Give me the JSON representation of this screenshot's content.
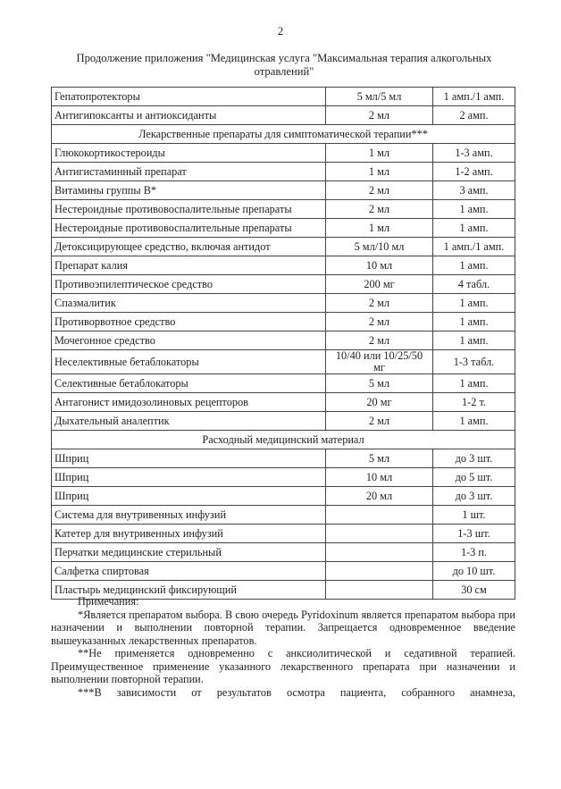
{
  "page_number": "2",
  "title": "Продолжение приложения \"Медицинская услуга \"Максимальная терапия алкогольных отравлений\"",
  "rows": [
    {
      "type": "item",
      "name": "Гепатопротекторы",
      "dose": "5 мл/5 мл",
      "qty": "1 амп./1 амп."
    },
    {
      "type": "item",
      "name": "Антигипоксанты и антиоксиданты",
      "dose": "2 мл",
      "qty": "2 амп."
    },
    {
      "type": "section",
      "name": "Лекарственные препараты для симптоматической терапии***"
    },
    {
      "type": "item",
      "name": "Глюкокортикостероиды",
      "dose": "1 мл",
      "qty": "1-3 амп."
    },
    {
      "type": "item",
      "name": "Антигистаминный препарат",
      "dose": "1 мл",
      "qty": "1-2 амп."
    },
    {
      "type": "item",
      "name": "Витамины группы В*",
      "dose": "2 мл",
      "qty": "3 амп."
    },
    {
      "type": "item",
      "name": "Нестероидные противовоспалительные препараты",
      "dose": "2 мл",
      "qty": "1 амп."
    },
    {
      "type": "item",
      "name": "Нестероидные противовоспалительные препараты",
      "dose": "1 мл",
      "qty": "1 амп."
    },
    {
      "type": "item",
      "name": "Детоксицирующее средство, включая антидот",
      "dose": "5 мл/10 мл",
      "qty": "1 амп./1 амп."
    },
    {
      "type": "item",
      "name": "Препарат калия",
      "dose": "10 мл",
      "qty": "1 амп."
    },
    {
      "type": "item",
      "name": "Противоэпилептическое средство",
      "dose": "200 мг",
      "qty": "4 табл."
    },
    {
      "type": "item",
      "name": "Спазмалитик",
      "dose": "2 мл",
      "qty": "1 амп."
    },
    {
      "type": "item",
      "name": "Противорвотное средство",
      "dose": "2 мл",
      "qty": "1 амп."
    },
    {
      "type": "item",
      "name": "Мочегонное средство",
      "dose": "2 мл",
      "qty": "1 амп."
    },
    {
      "type": "item",
      "name": "Неселективные бетаблокаторы",
      "dose": "10/40 или 10/25/50 мг",
      "qty": "1-3 табл."
    },
    {
      "type": "item",
      "name": "Селективные бетаблокаторы",
      "dose": "5 мл",
      "qty": "1 амп."
    },
    {
      "type": "item",
      "name": "Антагонист имидозолиновых рецепторов",
      "dose": "20 мг",
      "qty": "1-2 т."
    },
    {
      "type": "item",
      "name": "Дыхательный аналептик",
      "dose": "2 мл",
      "qty": "1 амп."
    },
    {
      "type": "section",
      "name": "Расходный медицинский материал"
    },
    {
      "type": "item",
      "name": "Шприц",
      "dose": "5 мл",
      "qty": "до 3 шт."
    },
    {
      "type": "item",
      "name": "Шприц",
      "dose": "10 мл",
      "qty": "до 5 шт."
    },
    {
      "type": "item",
      "name": "Шприц",
      "dose": "20 мл",
      "qty": "до 3 шт."
    },
    {
      "type": "item",
      "name": "Система для внутривенных инфузий",
      "dose": "",
      "qty": "1 шт."
    },
    {
      "type": "item",
      "name": "Катетер для внутривенных инфузий",
      "dose": "",
      "qty": "1-3 шт."
    },
    {
      "type": "item",
      "name": "Перчатки медицинские стерильный",
      "dose": "",
      "qty": "1-3 п."
    },
    {
      "type": "item",
      "name": "Салфетка спиртовая",
      "dose": "",
      "qty": "до 10 шт."
    },
    {
      "type": "item",
      "name": "Пластырь медицинский фиксирующий",
      "dose": "",
      "qty": "30 см"
    }
  ],
  "notes": {
    "heading": "Примечания:",
    "items": [
      "*Является препаратом выбора. В свою очередь Pyridoxinum является препаратом выбора при назначении и выполнении повторной терапии. Запрещается одновременное введение вышеуказанных лекарственных препаратов.",
      "**Не применяется одновременно с анксиолитической и седативной терапией. Преимущественное применение указанного лекарственного препарата при назначении и выполнении повторной терапии.",
      "***В зависимости от результатов осмотра пациента, собранного анамнеза,"
    ]
  }
}
